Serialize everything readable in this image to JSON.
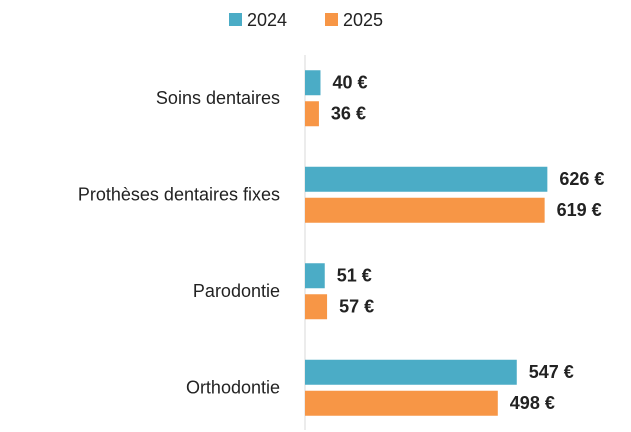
{
  "chart_data": {
    "type": "bar",
    "orientation": "horizontal",
    "categories": [
      "Soins dentaires",
      "Prothèses dentaires fixes",
      "Parodontie",
      "Orthodontie"
    ],
    "series": [
      {
        "name": "2024",
        "color": "#4bacc6",
        "label_color": "#31697c",
        "values": [
          40,
          626,
          51,
          547
        ],
        "value_labels": [
          "40 €",
          "626 €",
          "51 €",
          "547 €"
        ]
      },
      {
        "name": "2025",
        "color": "#f79646",
        "label_color": "#e46c0a",
        "values": [
          36,
          619,
          57,
          498
        ],
        "value_labels": [
          "36 €",
          "619 €",
          "57 €",
          "498 €"
        ]
      }
    ],
    "xlim": [
      0,
      700
    ],
    "legend": "top"
  }
}
